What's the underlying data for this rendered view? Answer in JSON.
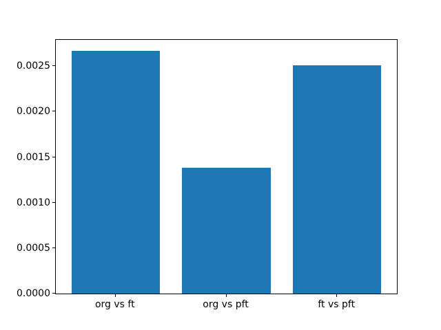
{
  "chart_data": {
    "type": "bar",
    "categories": [
      "org vs ft",
      "org vs pft",
      "ft vs pft"
    ],
    "values": [
      0.00267,
      0.00138,
      0.00251
    ],
    "yticks": [
      0.0,
      0.0005,
      0.001,
      0.0015,
      0.002,
      0.0025
    ],
    "ytick_labels": [
      "0.0000",
      "0.0005",
      "0.0010",
      "0.0015",
      "0.0020",
      "0.0025"
    ],
    "ylim": [
      0,
      0.00279
    ],
    "xlim": [
      -0.54,
      2.54
    ],
    "bar_width": 0.8,
    "bar_color": "#1f77b4",
    "axis_color": "#000000",
    "background_color": "#ffffff",
    "grid": false,
    "legend": null
  }
}
